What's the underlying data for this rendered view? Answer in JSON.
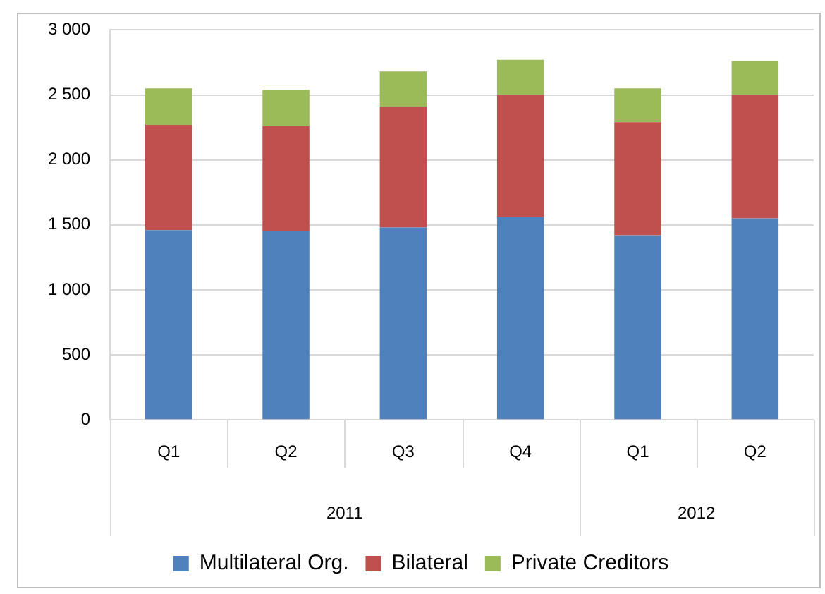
{
  "chart_data": {
    "type": "bar",
    "stacked": true,
    "categories": [
      "Q1",
      "Q2",
      "Q3",
      "Q4",
      "Q1",
      "Q2"
    ],
    "series": [
      {
        "name": "Multilateral Org.",
        "color": "#4f81bd",
        "values": [
          1460,
          1450,
          1480,
          1560,
          1420,
          1550
        ]
      },
      {
        "name": "Bilateral",
        "color": "#c0504d",
        "values": [
          810,
          810,
          930,
          940,
          870,
          950
        ]
      },
      {
        "name": "Private Creditors",
        "color": "#9bbb59",
        "values": [
          280,
          280,
          270,
          270,
          260,
          260
        ]
      }
    ],
    "annotations": [
      "2011",
      "2012"
    ],
    "ylim": [
      0,
      3000
    ],
    "yticks": [
      0,
      500,
      {
        "value": 1000,
        "label": "1 000"
      },
      {
        "value": 1500,
        "label": "1 500"
      },
      {
        "value": 2000,
        "label": "2 000"
      },
      {
        "value": 2500,
        "label": "2 500"
      },
      {
        "value": 3000,
        "label": "3 000"
      }
    ],
    "grid": true,
    "legend": "bottom"
  }
}
